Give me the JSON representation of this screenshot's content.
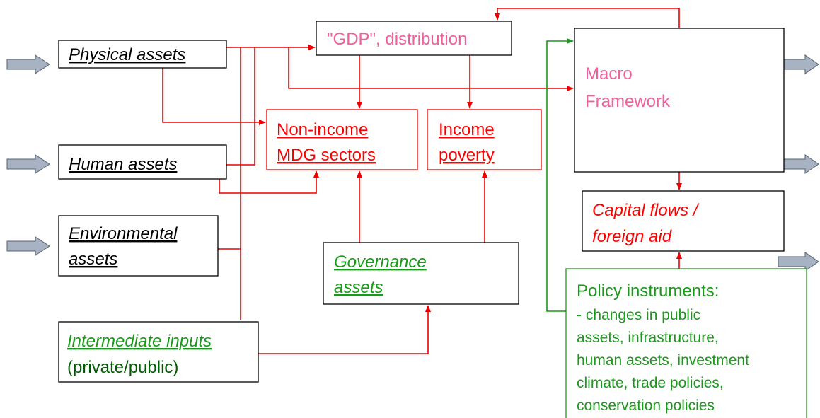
{
  "nodes": [
    {
      "lines": [
        "Physical assets"
      ]
    },
    {
      "lines": [
        "Human assets"
      ]
    },
    {
      "lines": [
        "Environmental",
        "assets"
      ]
    },
    {
      "lines": [
        "Intermediate inputs",
        "(private/public)"
      ]
    },
    {
      "lines": [
        "\"GDP\", distribution"
      ]
    },
    {
      "lines": [
        "Non-income",
        "MDG sectors"
      ]
    },
    {
      "lines": [
        "Income",
        "poverty"
      ]
    },
    {
      "lines": [
        "Governance",
        "assets"
      ]
    },
    {
      "lines": [
        "Macro",
        "Framework"
      ]
    },
    {
      "lines": [
        "Capital flows /",
        "foreign aid"
      ]
    },
    {
      "lines": [
        "Policy instruments:",
        "- changes in public",
        "assets, infrastructure,",
        "human assets, investment",
        "climate, trade policies,",
        "conservation policies"
      ]
    }
  ]
}
